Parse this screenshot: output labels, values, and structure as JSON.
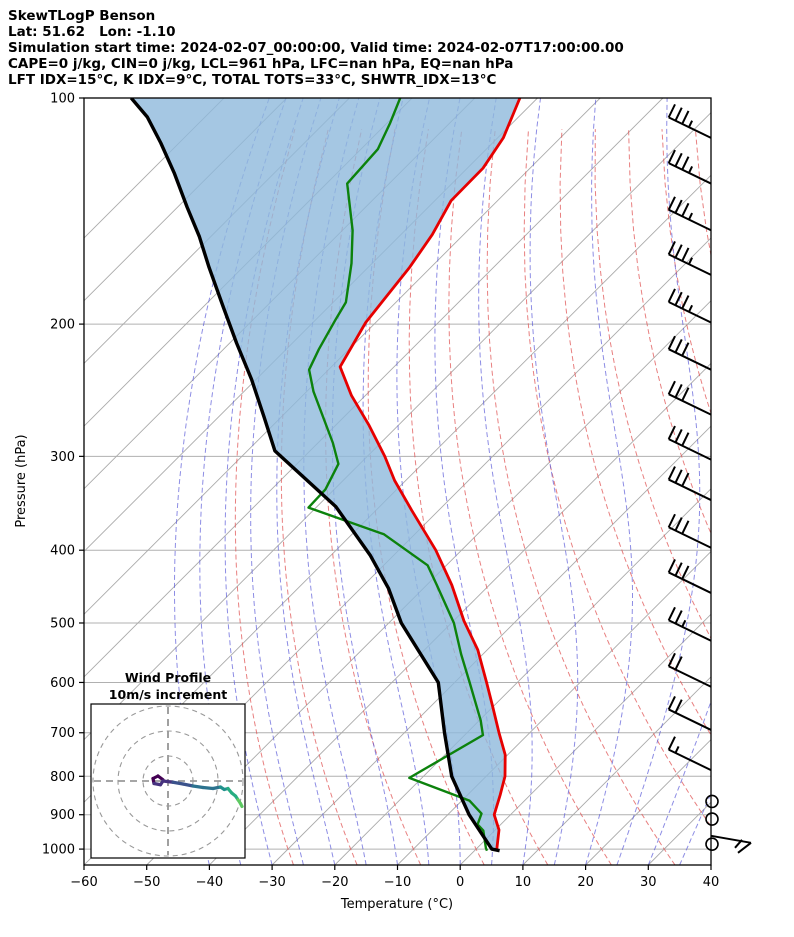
{
  "header": {
    "title": "SkewTLogP Benson",
    "location_line": "Lat: 51.62   Lon: -1.10",
    "time_line": "Simulation start time: 2024-02-07_00:00:00, Valid time: 2024-02-07T17:00:00.00",
    "stability_line1": "CAPE=0 j/kg, CIN=0 j/kg, LCL=961 hPa, LFC=nan hPa, EQ=nan hPa",
    "stability_line2": "LFT IDX=15°C, K IDX=9°C, TOTAL TOTS=33°C, SHWTR_IDX=13°C"
  },
  "axes": {
    "x_label": "Temperature (°C)",
    "y_label": "Pressure (hPa)",
    "x_ticks": [
      -60,
      -50,
      -40,
      -30,
      -20,
      -10,
      0,
      10,
      20,
      30,
      40
    ],
    "y_ticks": [
      100,
      200,
      300,
      400,
      500,
      600,
      700,
      800,
      900,
      1000
    ]
  },
  "inset": {
    "title": "Wind Profile",
    "subtitle": "10m/s increment",
    "ring_increment_ms": 10,
    "rings": [
      10,
      20,
      30
    ]
  },
  "background": {
    "isotherm_min": -160,
    "isotherm_max": 40,
    "isotherm_step": 10,
    "dry_adiabat_theta_min": -30,
    "dry_adiabat_theta_max": 200,
    "dry_adiabat_step": 10,
    "moist_adiabat_t0_min": -40,
    "moist_adiabat_t0_max": 40,
    "moist_adiabat_step": 5
  },
  "colors": {
    "temperature": "#e60000",
    "dewpoint": "#0c820c",
    "parcel": "#000000",
    "shade": "#8fb9dc",
    "dry_adiabat": "#e05555",
    "moist_adiabat": "#5d5dd8",
    "isobar": "#b0b0b0",
    "isotherm": "#aaaaaa",
    "barb": "#000000",
    "hodograph_gradient": [
      "#440154",
      "#46327e",
      "#3b528b",
      "#2c728e",
      "#21918c",
      "#27ad81",
      "#5ec962"
    ]
  },
  "chart_data": {
    "type": "skewt-logp",
    "pressure_range_hPa": [
      100,
      1050
    ],
    "temperature_axis_range_C": [
      -60,
      40
    ],
    "temperature_curve": [
      [
        1005,
        3.8
      ],
      [
        1000,
        3.3
      ],
      [
        943,
        0.6
      ],
      [
        900,
        -2.6
      ],
      [
        847,
        -4.8
      ],
      [
        800,
        -7.0
      ],
      [
        749,
        -10.4
      ],
      [
        700,
        -14.9
      ],
      [
        643,
        -20.4
      ],
      [
        600,
        -24.9
      ],
      [
        543,
        -31.5
      ],
      [
        497,
        -38.3
      ],
      [
        445,
        -46.0
      ],
      [
        400,
        -54.1
      ],
      [
        354,
        -64.3
      ],
      [
        323,
        -71.8
      ],
      [
        300,
        -77.2
      ],
      [
        273,
        -84.6
      ],
      [
        249,
        -92.2
      ],
      [
        228,
        -98.6
      ],
      [
        199,
        -101.6
      ],
      [
        168,
        -103.4
      ],
      [
        152,
        -105.0
      ],
      [
        137,
        -107.4
      ],
      [
        124,
        -107.5
      ],
      [
        113,
        -109.1
      ],
      [
        100,
        -112.8
      ]
    ],
    "dewpoint_curve": [
      [
        1005,
        2.0
      ],
      [
        997,
        1.4
      ],
      [
        945,
        -1.8
      ],
      [
        927,
        -3.7
      ],
      [
        897,
        -4.8
      ],
      [
        862,
        -8.8
      ],
      [
        804,
        -22.0
      ],
      [
        705,
        -17.1
      ],
      [
        674,
        -19.8
      ],
      [
        601,
        -27.5
      ],
      [
        550,
        -33.5
      ],
      [
        500,
        -39.6
      ],
      [
        445,
        -48.4
      ],
      [
        419,
        -53.0
      ],
      [
        381,
        -64.9
      ],
      [
        351,
        -81.2
      ],
      [
        332,
        -81.4
      ],
      [
        307,
        -83.4
      ],
      [
        288,
        -87.6
      ],
      [
        246,
        -98.9
      ],
      [
        230,
        -103.1
      ],
      [
        216,
        -104.8
      ],
      [
        197,
        -106.9
      ],
      [
        187,
        -108.0
      ],
      [
        166,
        -113.3
      ],
      [
        150,
        -118.4
      ],
      [
        130,
        -126.7
      ],
      [
        117,
        -127.3
      ],
      [
        108,
        -129.5
      ],
      [
        100,
        -131.9
      ]
    ],
    "parcel_curve": [
      [
        1005,
        4.0
      ],
      [
        1000,
        2.5
      ],
      [
        900,
        -6.6
      ],
      [
        800,
        -15.5
      ],
      [
        700,
        -23.6
      ],
      [
        600,
        -32.6
      ],
      [
        500,
        -48.0
      ],
      [
        450,
        -55.5
      ],
      [
        406,
        -63.8
      ],
      [
        350,
        -77.0
      ],
      [
        295,
        -95.6
      ],
      [
        266,
        -102.7
      ],
      [
        237,
        -110.7
      ],
      [
        212,
        -118.9
      ],
      [
        190,
        -126.7
      ],
      [
        168,
        -135.4
      ],
      [
        153,
        -141.8
      ],
      [
        139.7,
        -148.5
      ],
      [
        125.8,
        -156.0
      ],
      [
        114.8,
        -162.9
      ],
      [
        106,
        -169.2
      ],
      [
        100,
        -174.8
      ]
    ],
    "wind_barbs": [
      {
        "p": 113,
        "speed": 35
      },
      {
        "p": 130,
        "speed": 35
      },
      {
        "p": 150,
        "speed": 35
      },
      {
        "p": 172,
        "speed": 35
      },
      {
        "p": 199,
        "speed": 35
      },
      {
        "p": 230,
        "speed": 30
      },
      {
        "p": 264,
        "speed": 30
      },
      {
        "p": 303,
        "speed": 30
      },
      {
        "p": 343,
        "speed": 30
      },
      {
        "p": 397,
        "speed": 30
      },
      {
        "p": 456,
        "speed": 30
      },
      {
        "p": 528,
        "speed": 25
      },
      {
        "p": 608,
        "speed": 20
      },
      {
        "p": 694,
        "speed": 20
      },
      {
        "p": 785,
        "speed": 15
      }
    ],
    "calm_levels_hPa": [
      864,
      912,
      985
    ],
    "surface_barb": {
      "p": 975,
      "speed": 5,
      "direction": "ENE"
    },
    "hodograph_trace_uv_ms": [
      [
        -2,
        0.5
      ],
      [
        -4,
        2
      ],
      [
        -6,
        1
      ],
      [
        -5.6,
        -1
      ],
      [
        -3,
        -1.5
      ],
      [
        -2,
        0
      ],
      [
        2,
        -0.5
      ],
      [
        6,
        -1.2
      ],
      [
        10,
        -2
      ],
      [
        14,
        -2.6
      ],
      [
        18,
        -3
      ],
      [
        21,
        -2.4
      ],
      [
        22.5,
        -3.4
      ],
      [
        24,
        -3
      ],
      [
        25.5,
        -4.8
      ],
      [
        27,
        -6
      ],
      [
        28,
        -7.5
      ],
      [
        29,
        -9
      ],
      [
        29.6,
        -10.2
      ]
    ]
  }
}
